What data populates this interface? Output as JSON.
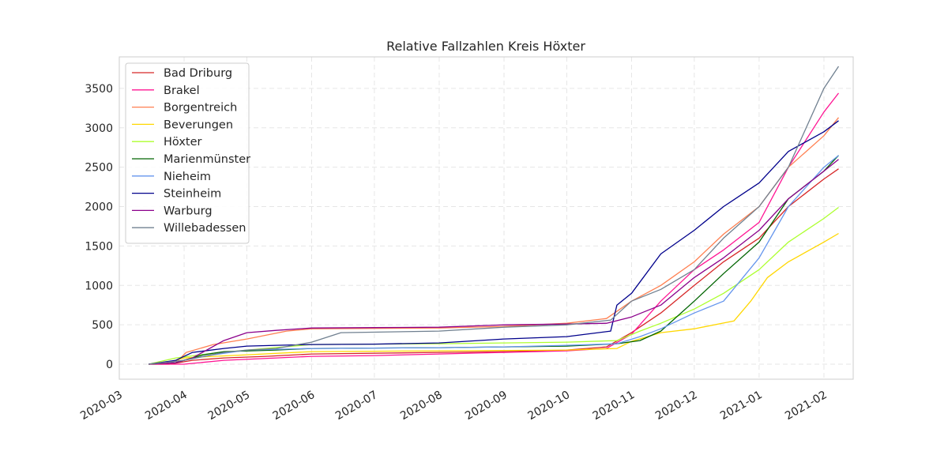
{
  "chart_data": {
    "type": "line",
    "title": "Relative Fallzahlen Kreis Höxter",
    "xlabel": "",
    "ylabel": "",
    "x_ticks": [
      "2020-03",
      "2020-04",
      "2020-05",
      "2020-06",
      "2020-07",
      "2020-08",
      "2020-09",
      "2020-10",
      "2020-11",
      "2020-12",
      "2021-01",
      "2021-02"
    ],
    "y_ticks": [
      0,
      500,
      1000,
      1500,
      2000,
      2500,
      3000,
      3500
    ],
    "xlim": [
      "2020-03-01",
      "2021-02-15"
    ],
    "ylim": [
      -190,
      3900
    ],
    "grid": true,
    "legend_position": "top-left",
    "series": [
      {
        "name": "Bad Driburg",
        "color": "#d62728",
        "points": [
          [
            "2020-03-15",
            0
          ],
          [
            "2020-03-25",
            0
          ],
          [
            "2020-04-05",
            50
          ],
          [
            "2020-04-20",
            80
          ],
          [
            "2020-05-10",
            100
          ],
          [
            "2020-06-01",
            130
          ],
          [
            "2020-08-01",
            150
          ],
          [
            "2020-09-01",
            160
          ],
          [
            "2020-10-01",
            180
          ],
          [
            "2020-10-20",
            220
          ],
          [
            "2020-11-01",
            400
          ],
          [
            "2020-11-15",
            650
          ],
          [
            "2020-12-01",
            1000
          ],
          [
            "2020-12-15",
            1300
          ],
          [
            "2021-01-01",
            1600
          ],
          [
            "2021-01-15",
            2000
          ],
          [
            "2021-02-01",
            2350
          ],
          [
            "2021-02-08",
            2480
          ]
        ]
      },
      {
        "name": "Brakel",
        "color": "#ff1493",
        "points": [
          [
            "2020-03-15",
            0
          ],
          [
            "2020-04-01",
            0
          ],
          [
            "2020-04-20",
            50
          ],
          [
            "2020-05-15",
            80
          ],
          [
            "2020-06-01",
            100
          ],
          [
            "2020-07-01",
            110
          ],
          [
            "2020-08-01",
            130
          ],
          [
            "2020-09-01",
            150
          ],
          [
            "2020-10-01",
            170
          ],
          [
            "2020-10-20",
            200
          ],
          [
            "2020-11-01",
            380
          ],
          [
            "2020-11-15",
            800
          ],
          [
            "2020-12-01",
            1200
          ],
          [
            "2020-12-15",
            1450
          ],
          [
            "2021-01-01",
            1800
          ],
          [
            "2021-01-15",
            2500
          ],
          [
            "2021-02-01",
            3200
          ],
          [
            "2021-02-08",
            3440
          ]
        ]
      },
      {
        "name": "Borgentreich",
        "color": "#ff7f50",
        "points": [
          [
            "2020-03-15",
            0
          ],
          [
            "2020-03-28",
            20
          ],
          [
            "2020-04-02",
            150
          ],
          [
            "2020-04-15",
            250
          ],
          [
            "2020-05-01",
            320
          ],
          [
            "2020-05-20",
            420
          ],
          [
            "2020-06-01",
            450
          ],
          [
            "2020-08-01",
            460
          ],
          [
            "2020-09-01",
            480
          ],
          [
            "2020-10-01",
            520
          ],
          [
            "2020-10-20",
            580
          ],
          [
            "2020-11-01",
            800
          ],
          [
            "2020-11-15",
            1000
          ],
          [
            "2020-12-01",
            1300
          ],
          [
            "2020-12-15",
            1650
          ],
          [
            "2021-01-01",
            2000
          ],
          [
            "2021-01-15",
            2500
          ],
          [
            "2021-02-01",
            2900
          ],
          [
            "2021-02-08",
            3130
          ]
        ]
      },
      {
        "name": "Beverungen",
        "color": "#ffd700",
        "points": [
          [
            "2020-03-15",
            0
          ],
          [
            "2020-03-25",
            30
          ],
          [
            "2020-04-01",
            80
          ],
          [
            "2020-04-15",
            100
          ],
          [
            "2020-05-01",
            120
          ],
          [
            "2020-06-01",
            160
          ],
          [
            "2020-08-01",
            170
          ],
          [
            "2020-09-01",
            175
          ],
          [
            "2020-10-01",
            180
          ],
          [
            "2020-10-25",
            200
          ],
          [
            "2020-11-01",
            290
          ],
          [
            "2020-11-15",
            400
          ],
          [
            "2020-12-01",
            450
          ],
          [
            "2020-12-20",
            550
          ],
          [
            "2020-12-28",
            800
          ],
          [
            "2021-01-05",
            1100
          ],
          [
            "2021-01-15",
            1300
          ],
          [
            "2021-02-01",
            1550
          ],
          [
            "2021-02-08",
            1660
          ]
        ]
      },
      {
        "name": "Höxter",
        "color": "#adff2f",
        "points": [
          [
            "2020-03-15",
            0
          ],
          [
            "2020-03-28",
            80
          ],
          [
            "2020-04-15",
            140
          ],
          [
            "2020-05-01",
            180
          ],
          [
            "2020-06-01",
            250
          ],
          [
            "2020-08-01",
            260
          ],
          [
            "2020-09-01",
            270
          ],
          [
            "2020-10-01",
            280
          ],
          [
            "2020-10-25",
            300
          ],
          [
            "2020-11-05",
            420
          ],
          [
            "2020-11-15",
            520
          ],
          [
            "2020-12-01",
            700
          ],
          [
            "2020-12-15",
            900
          ],
          [
            "2021-01-01",
            1200
          ],
          [
            "2021-01-15",
            1550
          ],
          [
            "2021-02-01",
            1850
          ],
          [
            "2021-02-08",
            1990
          ]
        ]
      },
      {
        "name": "Marienmünster",
        "color": "#006400",
        "points": [
          [
            "2020-03-15",
            0
          ],
          [
            "2020-03-28",
            20
          ],
          [
            "2020-04-10",
            120
          ],
          [
            "2020-04-20",
            160
          ],
          [
            "2020-05-15",
            180
          ],
          [
            "2020-06-01",
            200
          ],
          [
            "2020-08-01",
            210
          ],
          [
            "2020-09-01",
            220
          ],
          [
            "2020-10-01",
            230
          ],
          [
            "2020-10-25",
            260
          ],
          [
            "2020-11-05",
            300
          ],
          [
            "2020-11-15",
            420
          ],
          [
            "2020-12-01",
            800
          ],
          [
            "2020-12-15",
            1150
          ],
          [
            "2021-01-01",
            1550
          ],
          [
            "2021-01-15",
            2100
          ],
          [
            "2021-02-01",
            2450
          ],
          [
            "2021-02-08",
            2650
          ]
        ]
      },
      {
        "name": "Nieheim",
        "color": "#6495ed",
        "points": [
          [
            "2020-03-15",
            0
          ],
          [
            "2020-04-01",
            50
          ],
          [
            "2020-04-15",
            120
          ],
          [
            "2020-05-01",
            180
          ],
          [
            "2020-06-01",
            200
          ],
          [
            "2020-08-01",
            210
          ],
          [
            "2020-09-01",
            220
          ],
          [
            "2020-10-01",
            240
          ],
          [
            "2020-10-25",
            260
          ],
          [
            "2020-11-05",
            350
          ],
          [
            "2020-11-15",
            450
          ],
          [
            "2020-12-01",
            650
          ],
          [
            "2020-12-15",
            800
          ],
          [
            "2021-01-01",
            1350
          ],
          [
            "2021-01-15",
            2000
          ],
          [
            "2021-02-01",
            2500
          ],
          [
            "2021-02-08",
            2650
          ]
        ]
      },
      {
        "name": "Steinheim",
        "color": "#00008b",
        "points": [
          [
            "2020-03-15",
            0
          ],
          [
            "2020-03-28",
            50
          ],
          [
            "2020-04-05",
            150
          ],
          [
            "2020-04-20",
            200
          ],
          [
            "2020-05-01",
            230
          ],
          [
            "2020-05-15",
            240
          ],
          [
            "2020-06-01",
            250
          ],
          [
            "2020-07-01",
            255
          ],
          [
            "2020-08-01",
            270
          ],
          [
            "2020-09-01",
            320
          ],
          [
            "2020-10-01",
            350
          ],
          [
            "2020-10-22",
            420
          ],
          [
            "2020-10-25",
            750
          ],
          [
            "2020-11-01",
            900
          ],
          [
            "2020-11-15",
            1400
          ],
          [
            "2020-12-01",
            1700
          ],
          [
            "2020-12-15",
            2000
          ],
          [
            "2021-01-01",
            2300
          ],
          [
            "2021-01-15",
            2700
          ],
          [
            "2021-02-01",
            2950
          ],
          [
            "2021-02-08",
            3090
          ]
        ]
      },
      {
        "name": "Warburg",
        "color": "#8b008b",
        "points": [
          [
            "2020-03-15",
            0
          ],
          [
            "2020-03-28",
            20
          ],
          [
            "2020-04-05",
            80
          ],
          [
            "2020-04-20",
            300
          ],
          [
            "2020-05-01",
            400
          ],
          [
            "2020-05-15",
            430
          ],
          [
            "2020-06-01",
            460
          ],
          [
            "2020-07-01",
            465
          ],
          [
            "2020-08-01",
            470
          ],
          [
            "2020-09-01",
            500
          ],
          [
            "2020-10-01",
            510
          ],
          [
            "2020-10-20",
            520
          ],
          [
            "2020-11-01",
            600
          ],
          [
            "2020-11-15",
            750
          ],
          [
            "2020-12-01",
            1100
          ],
          [
            "2020-12-15",
            1350
          ],
          [
            "2021-01-01",
            1700
          ],
          [
            "2021-01-15",
            2100
          ],
          [
            "2021-02-01",
            2450
          ],
          [
            "2021-02-08",
            2600
          ]
        ]
      },
      {
        "name": "Willebadessen",
        "color": "#708090",
        "points": [
          [
            "2020-03-15",
            0
          ],
          [
            "2020-04-01",
            50
          ],
          [
            "2020-04-10",
            100
          ],
          [
            "2020-04-20",
            150
          ],
          [
            "2020-05-01",
            180
          ],
          [
            "2020-05-15",
            200
          ],
          [
            "2020-06-01",
            280
          ],
          [
            "2020-06-15",
            400
          ],
          [
            "2020-08-01",
            420
          ],
          [
            "2020-09-01",
            470
          ],
          [
            "2020-10-01",
            500
          ],
          [
            "2020-10-22",
            560
          ],
          [
            "2020-11-01",
            800
          ],
          [
            "2020-11-15",
            950
          ],
          [
            "2020-12-01",
            1200
          ],
          [
            "2020-12-15",
            1600
          ],
          [
            "2021-01-01",
            2000
          ],
          [
            "2021-01-15",
            2500
          ],
          [
            "2021-02-01",
            3500
          ],
          [
            "2021-02-08",
            3780
          ]
        ]
      }
    ]
  }
}
